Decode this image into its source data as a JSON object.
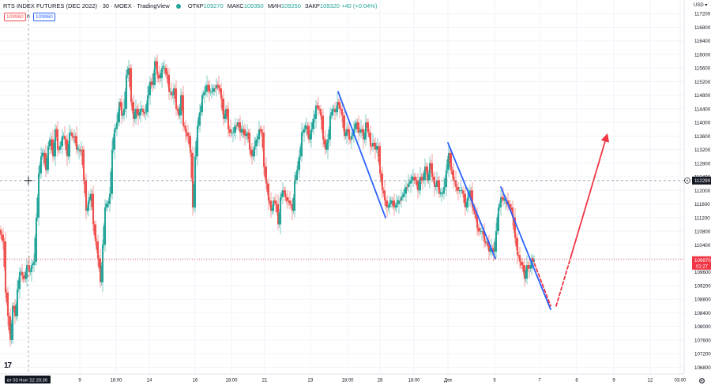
{
  "header": {
    "symbol": "RTS INDEX FUTURES (DEC 2022) · 30 · MOEX · TradingView",
    "open_label": "ОТКР",
    "open_value": "109270",
    "high_label": "МАКС",
    "high_value": "109350",
    "low_label": "МИН",
    "low_value": "109250",
    "close_label": "ЗАКР",
    "close_value": "109320",
    "change": "+40 (+0.04%)",
    "sell_price": "109960",
    "spread": "0",
    "buy_price": "109960"
  },
  "currency_label": "USD",
  "colors": {
    "up": "#26a69a",
    "down": "#ef5350",
    "blue_line": "#2962ff",
    "red_line": "#f23645",
    "crosshair_label_bg": "#131722",
    "last_price_bg": "#f23645"
  },
  "chart_data": {
    "type": "candlestick",
    "ylim": [
      106600,
      117600
    ],
    "y_ticks": [
      117200,
      116800,
      116400,
      116000,
      115600,
      115200,
      114800,
      114400,
      114000,
      113600,
      113200,
      112800,
      112400,
      112000,
      111600,
      111200,
      110800,
      110400,
      110000,
      109600,
      109200,
      108800,
      108400,
      108000,
      107600,
      107200,
      106800
    ],
    "x_tick_labels": [
      "вт 03 Ноя '22  20:30",
      "9",
      "18:00",
      "14",
      "16",
      "18:00",
      "21",
      "23",
      "18:00",
      "28",
      "18:00",
      "Дек",
      "5",
      "7",
      "8",
      "9",
      "12",
      "03:00"
    ],
    "crosshair_price": "112290",
    "last_price": "109970",
    "last_price_countdown": "01:27",
    "close_path": [
      [
        0,
        110700
      ],
      [
        3,
        110500
      ],
      [
        6,
        109000
      ],
      [
        9,
        108300
      ],
      [
        12,
        107600
      ],
      [
        15,
        108600
      ],
      [
        18,
        108300
      ],
      [
        21,
        109100
      ],
      [
        24,
        109600
      ],
      [
        27,
        109500
      ],
      [
        30,
        109400
      ],
      [
        33,
        109800
      ],
      [
        36,
        109600
      ],
      [
        39,
        109800
      ],
      [
        42,
        109900
      ],
      [
        45,
        111200
      ],
      [
        48,
        112500
      ],
      [
        51,
        113000
      ],
      [
        54,
        113100
      ],
      [
        57,
        112600
      ],
      [
        60,
        113300
      ],
      [
        63,
        113500
      ],
      [
        66,
        113000
      ],
      [
        69,
        113800
      ],
      [
        72,
        113200
      ],
      [
        75,
        113300
      ],
      [
        78,
        113600
      ],
      [
        81,
        113500
      ],
      [
        84,
        113000
      ],
      [
        87,
        113700
      ],
      [
        90,
        113600
      ],
      [
        93,
        113600
      ],
      [
        96,
        113200
      ],
      [
        99,
        113200
      ],
      [
        102,
        113200
      ],
      [
        105,
        112300
      ],
      [
        108,
        111400
      ],
      [
        111,
        111700
      ],
      [
        114,
        111900
      ],
      [
        117,
        111000
      ],
      [
        120,
        110500
      ],
      [
        123,
        110000
      ],
      [
        126,
        109300
      ],
      [
        129,
        110400
      ],
      [
        132,
        111500
      ],
      [
        135,
        111600
      ],
      [
        138,
        111900
      ],
      [
        141,
        113200
      ],
      [
        144,
        113800
      ],
      [
        147,
        114000
      ],
      [
        150,
        114600
      ],
      [
        153,
        114200
      ],
      [
        156,
        114400
      ],
      [
        159,
        115400
      ],
      [
        162,
        115600
      ],
      [
        165,
        114600
      ],
      [
        168,
        114100
      ],
      [
        171,
        114400
      ],
      [
        174,
        114200
      ],
      [
        177,
        114400
      ],
      [
        180,
        114300
      ],
      [
        183,
        114300
      ],
      [
        186,
        114800
      ],
      [
        189,
        115200
      ],
      [
        192,
        115100
      ],
      [
        195,
        115800
      ],
      [
        198,
        115400
      ],
      [
        201,
        115300
      ],
      [
        204,
        115600
      ],
      [
        207,
        115600
      ],
      [
        210,
        115400
      ],
      [
        213,
        114900
      ],
      [
        216,
        114800
      ],
      [
        219,
        115000
      ],
      [
        222,
        114400
      ],
      [
        225,
        114200
      ],
      [
        228,
        114800
      ],
      [
        231,
        113900
      ],
      [
        234,
        113700
      ],
      [
        237,
        113600
      ],
      [
        240,
        113100
      ],
      [
        243,
        111500
      ],
      [
        246,
        113000
      ],
      [
        249,
        113900
      ],
      [
        252,
        114300
      ],
      [
        255,
        114800
      ],
      [
        258,
        114900
      ],
      [
        261,
        115100
      ],
      [
        264,
        114900
      ],
      [
        267,
        114900
      ],
      [
        270,
        115000
      ],
      [
        273,
        115100
      ],
      [
        276,
        115000
      ],
      [
        279,
        114700
      ],
      [
        282,
        114100
      ],
      [
        285,
        114400
      ],
      [
        288,
        113800
      ],
      [
        291,
        113700
      ],
      [
        294,
        113700
      ],
      [
        297,
        113900
      ],
      [
        300,
        114000
      ],
      [
        303,
        113700
      ],
      [
        306,
        113800
      ],
      [
        309,
        113600
      ],
      [
        312,
        113700
      ],
      [
        315,
        113200
      ],
      [
        318,
        113000
      ],
      [
        321,
        113300
      ],
      [
        324,
        113500
      ],
      [
        327,
        113800
      ],
      [
        330,
        113700
      ],
      [
        333,
        112700
      ],
      [
        336,
        112200
      ],
      [
        339,
        111700
      ],
      [
        342,
        111400
      ],
      [
        345,
        111700
      ],
      [
        348,
        111600
      ],
      [
        351,
        111000
      ],
      [
        354,
        111800
      ],
      [
        357,
        112000
      ],
      [
        360,
        111800
      ],
      [
        363,
        111700
      ],
      [
        366,
        111600
      ],
      [
        369,
        111400
      ],
      [
        372,
        112300
      ],
      [
        375,
        112600
      ],
      [
        378,
        113000
      ],
      [
        381,
        113700
      ],
      [
        384,
        113800
      ],
      [
        387,
        113900
      ],
      [
        390,
        113500
      ],
      [
        393,
        113800
      ],
      [
        396,
        114100
      ],
      [
        399,
        114500
      ],
      [
        402,
        114400
      ],
      [
        405,
        114200
      ],
      [
        408,
        113500
      ],
      [
        411,
        113200
      ],
      [
        414,
        113500
      ],
      [
        417,
        114200
      ],
      [
        420,
        114400
      ],
      [
        423,
        114300
      ],
      [
        426,
        114600
      ],
      [
        429,
        114400
      ],
      [
        432,
        114200
      ],
      [
        435,
        113600
      ],
      [
        438,
        113800
      ],
      [
        441,
        113500
      ],
      [
        444,
        113600
      ],
      [
        447,
        113800
      ],
      [
        450,
        114000
      ],
      [
        453,
        113700
      ],
      [
        456,
        113800
      ],
      [
        459,
        113500
      ],
      [
        462,
        114000
      ],
      [
        465,
        113700
      ],
      [
        468,
        113300
      ],
      [
        471,
        113400
      ],
      [
        474,
        113200
      ],
      [
        477,
        113300
      ],
      [
        480,
        112500
      ],
      [
        483,
        112000
      ],
      [
        486,
        111700
      ],
      [
        489,
        111500
      ],
      [
        492,
        111600
      ],
      [
        495,
        111700
      ],
      [
        498,
        111500
      ],
      [
        501,
        111600
      ],
      [
        504,
        111700
      ],
      [
        507,
        111800
      ],
      [
        510,
        111900
      ],
      [
        513,
        112100
      ],
      [
        516,
        112200
      ],
      [
        519,
        112300
      ],
      [
        522,
        112400
      ],
      [
        525,
        112300
      ],
      [
        528,
        112000
      ],
      [
        531,
        112400
      ],
      [
        534,
        112300
      ],
      [
        537,
        112700
      ],
      [
        540,
        112300
      ],
      [
        543,
        112800
      ],
      [
        546,
        112400
      ],
      [
        549,
        112100
      ],
      [
        552,
        112300
      ],
      [
        555,
        111900
      ],
      [
        558,
        111900
      ],
      [
        561,
        112100
      ],
      [
        564,
        112600
      ],
      [
        567,
        113100
      ],
      [
        570,
        112600
      ],
      [
        573,
        112300
      ],
      [
        576,
        112100
      ],
      [
        579,
        112000
      ],
      [
        582,
        112000
      ],
      [
        585,
        111900
      ],
      [
        588,
        111500
      ],
      [
        591,
        111800
      ],
      [
        594,
        112000
      ],
      [
        597,
        111500
      ],
      [
        600,
        111300
      ],
      [
        603,
        110900
      ],
      [
        606,
        110800
      ],
      [
        609,
        110800
      ],
      [
        612,
        110500
      ],
      [
        615,
        110500
      ],
      [
        618,
        110200
      ],
      [
        621,
        110300
      ],
      [
        624,
        110200
      ],
      [
        627,
        110800
      ],
      [
        630,
        111500
      ],
      [
        633,
        111800
      ],
      [
        636,
        111700
      ],
      [
        639,
        111700
      ],
      [
        642,
        111600
      ],
      [
        645,
        111500
      ],
      [
        648,
        111200
      ],
      [
        651,
        110600
      ],
      [
        654,
        110100
      ],
      [
        657,
        109900
      ],
      [
        660,
        109800
      ],
      [
        663,
        109400
      ],
      [
        666,
        109800
      ],
      [
        669,
        109700
      ],
      [
        672,
        109900
      ],
      [
        675,
        109970
      ]
    ],
    "drawings": [
      {
        "color": "blue",
        "from": [
          428,
          114900
        ],
        "to": [
          488,
          111200
        ]
      },
      {
        "color": "blue",
        "from": [
          567,
          113400
        ],
        "to": [
          627,
          110000
        ]
      },
      {
        "color": "blue",
        "from": [
          634,
          112100
        ],
        "to": [
          697,
          108500
        ]
      },
      {
        "color": "red",
        "style": "dashed",
        "from": [
          674,
          110000
        ],
        "to": [
          697,
          108600
        ]
      },
      {
        "color": "red",
        "style": "dashed",
        "from": [
          704,
          108600
        ],
        "to": [
          722,
          110000
        ]
      },
      {
        "color": "red",
        "style": "solid",
        "arrow": true,
        "from": [
          722,
          110000
        ],
        "to": [
          768,
          113600
        ]
      }
    ]
  }
}
